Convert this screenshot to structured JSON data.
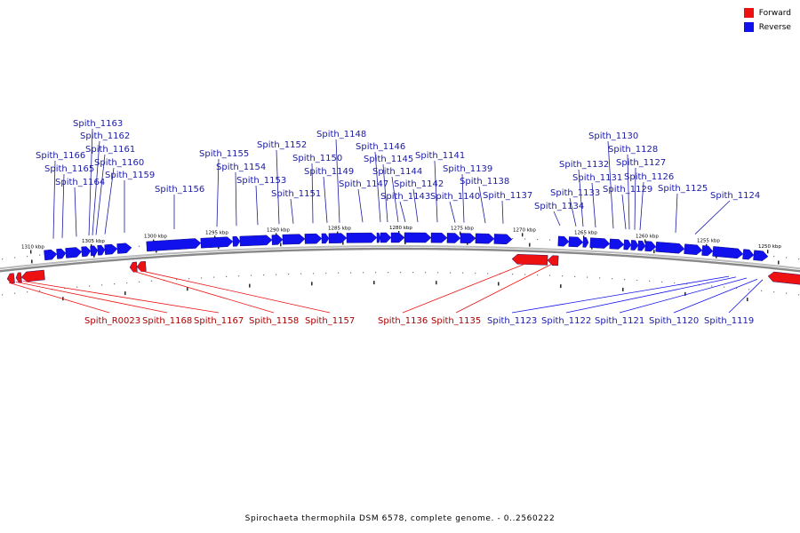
{
  "caption": "Spirochaeta thermophila DSM 6578, complete genome. - 0..2560222",
  "legend": [
    {
      "label": "Forward",
      "color": "#ee1111"
    },
    {
      "label": "Reverse",
      "color": "#1111ee"
    }
  ],
  "colors": {
    "forward": "#ee1111",
    "reverse": "#1111ee",
    "forward_text": "#aa0000",
    "reverse_text": "#1a1aa6",
    "ring": "#999999"
  },
  "ticks": [
    "1310 kbp",
    "1305 kbp",
    "1300 kbp",
    "1295 kbp",
    "1290 kbp",
    "1285 kbp",
    "1280 kbp",
    "1275 kbp",
    "1270 kbp",
    "1265 kbp",
    "1260 kbp",
    "1255 kbp",
    "1250 kbp"
  ],
  "upper_labels": [
    "Spith_1166",
    "Spith_1165",
    "Spith_1164",
    "Spith_1163",
    "Spith_1162",
    "Spith_1161",
    "Spith_1160",
    "Spith_1159",
    "Spith_1156",
    "Spith_1155",
    "Spith_1154",
    "Spith_1153",
    "Spith_1152",
    "Spith_1151",
    "Spith_1150",
    "Spith_1149",
    "Spith_1148",
    "Spith_1147",
    "Spith_1146",
    "Spith_1145",
    "Spith_1144",
    "Spith_1143",
    "Spith_1142",
    "Spith_1141",
    "Spith_1140",
    "Spith_1139",
    "Spith_1138",
    "Spith_1137",
    "Spith_1134",
    "Spith_1133",
    "Spith_1132",
    "Spith_1131",
    "Spith_1130",
    "Spith_1129",
    "Spith_1128",
    "Spith_1127",
    "Spith_1126",
    "Spith_1125",
    "Spith_1124"
  ],
  "lower_labels": [
    {
      "label": "Spith_R0023",
      "strand": "forward"
    },
    {
      "label": "Spith_1168",
      "strand": "forward"
    },
    {
      "label": "Spith_1167",
      "strand": "forward"
    },
    {
      "label": "Spith_1158",
      "strand": "forward"
    },
    {
      "label": "Spith_1157",
      "strand": "forward"
    },
    {
      "label": "Spith_1136",
      "strand": "forward"
    },
    {
      "label": "Spith_1135",
      "strand": "forward"
    },
    {
      "label": "Spith_1123",
      "strand": "reverse"
    },
    {
      "label": "Spith_1122",
      "strand": "reverse"
    },
    {
      "label": "Spith_1121",
      "strand": "reverse"
    },
    {
      "label": "Spith_1120",
      "strand": "reverse"
    },
    {
      "label": "Spith_1119",
      "strand": "reverse"
    }
  ]
}
